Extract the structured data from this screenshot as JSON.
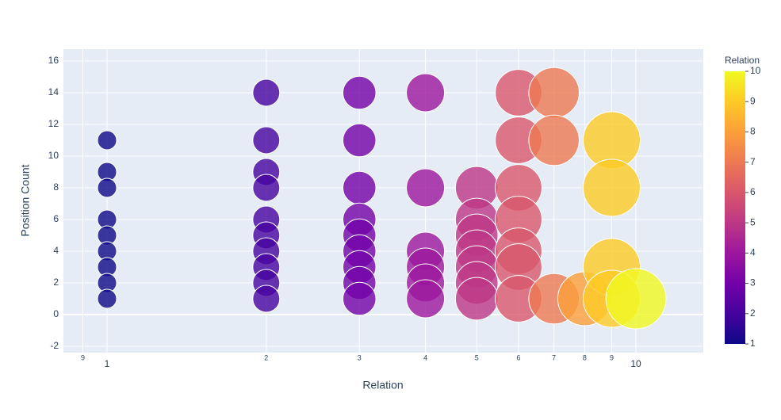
{
  "chart_data": {
    "type": "scatter",
    "x_label": "Relation",
    "y_label": "Position Count",
    "x": [
      1,
      1,
      1,
      1,
      1,
      1,
      1,
      1,
      1,
      2,
      2,
      2,
      2,
      2,
      2,
      2,
      2,
      2,
      2,
      3,
      3,
      3,
      3,
      3,
      3,
      3,
      3,
      3,
      4,
      4,
      4,
      4,
      4,
      4,
      5,
      5,
      5,
      5,
      5,
      5,
      5,
      6,
      6,
      6,
      6,
      6,
      6,
      6,
      7,
      7,
      7,
      8,
      9,
      9,
      9,
      9,
      10
    ],
    "y": [
      11,
      9,
      8,
      6,
      5,
      4,
      3,
      2,
      1,
      14,
      11,
      9,
      8,
      6,
      5,
      4,
      3,
      2,
      1,
      14,
      11,
      8,
      6,
      5,
      4,
      3,
      2,
      1,
      14,
      8,
      4,
      3,
      2,
      1,
      8,
      6,
      5,
      4,
      3,
      2,
      1,
      14,
      11,
      8,
      6,
      4,
      3,
      1,
      14,
      11,
      1,
      1,
      11,
      8,
      3,
      1,
      1
    ],
    "xlog": true,
    "xlim": [
      0.827,
      13.41
    ],
    "ylim": [
      -2.4,
      16.75
    ],
    "xticks": [
      {
        "value": 0.9,
        "label": "9"
      },
      1,
      2,
      3,
      4,
      5,
      6,
      7,
      8,
      9,
      10
    ],
    "yticks": [
      -2,
      0,
      2,
      4,
      6,
      8,
      10,
      12,
      14,
      16
    ],
    "grid": true,
    "colorbar": {
      "title": "Relation",
      "clim": [
        1,
        10
      ],
      "ticks": [
        1,
        2,
        3,
        4,
        5,
        6,
        7,
        8,
        9,
        10
      ],
      "colorscale": [
        "#0d0887",
        "#46039f",
        "#7201a8",
        "#9c179e",
        "#bd3786",
        "#d8576b",
        "#ed7953",
        "#fb9f3a",
        "#fdca26",
        "#f0f921"
      ]
    }
  }
}
